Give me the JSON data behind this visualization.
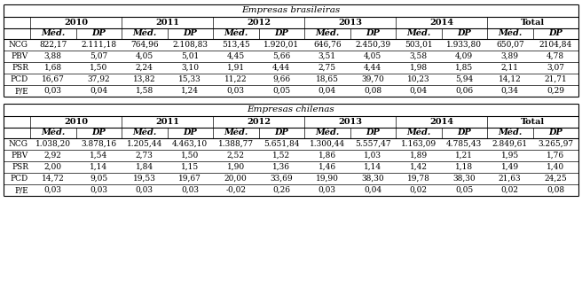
{
  "title_top": "Empresas brasileiras",
  "title_bottom": "Empresas chilenas",
  "years": [
    "2010",
    "2011",
    "2012",
    "2013",
    "2014",
    "Total"
  ],
  "row_labels": [
    "NCG",
    "PBV",
    "PSR",
    "PCD",
    "P/E"
  ],
  "col_headers": [
    "Méd.",
    "DP"
  ],
  "br_data": [
    [
      "822,17",
      "2.111,18",
      "764,96",
      "2.108,83",
      "513,45",
      "1.920,01",
      "646,76",
      "2.450,39",
      "503,01",
      "1.933,80",
      "650,07",
      "2104,84"
    ],
    [
      "3,88",
      "5,07",
      "4,05",
      "5,01",
      "4,45",
      "5,66",
      "3,51",
      "4,05",
      "3,58",
      "4,09",
      "3,89",
      "4,78"
    ],
    [
      "1,68",
      "1,50",
      "2,24",
      "3,10",
      "1,91",
      "4,44",
      "2,75",
      "4,44",
      "1,98",
      "1,85",
      "2,11",
      "3,07"
    ],
    [
      "16,67",
      "37,92",
      "13,82",
      "15,33",
      "11,22",
      "9,66",
      "18,65",
      "39,70",
      "10,23",
      "5,94",
      "14,12",
      "21,71"
    ],
    [
      "0,03",
      "0,04",
      "1,58",
      "1,24",
      "0,03",
      "0,05",
      "0,04",
      "0,08",
      "0,04",
      "0,06",
      "0,34",
      "0,29"
    ]
  ],
  "cl_data": [
    [
      "1.038,20",
      "3.878,16",
      "1.205,44",
      "4.463,10",
      "1.388,77",
      "5.651,84",
      "1.300,44",
      "5.557,47",
      "1.163,09",
      "4.785,43",
      "2.849,61",
      "3.265,97"
    ],
    [
      "2,92",
      "1,54",
      "2,73",
      "1,50",
      "2,52",
      "1,52",
      "1,86",
      "1,03",
      "1,89",
      "1,21",
      "1,95",
      "1,76"
    ],
    [
      "2,00",
      "1,14",
      "1,84",
      "1,15",
      "1,90",
      "1,36",
      "1,46",
      "1,14",
      "1,42",
      "1,18",
      "1,49",
      "1,40"
    ],
    [
      "14,72",
      "9,05",
      "19,53",
      "19,67",
      "20,00",
      "33,69",
      "19,90",
      "38,30",
      "19,78",
      "38,30",
      "21,63",
      "24,25"
    ],
    [
      "0,03",
      "0,03",
      "0,03",
      "0,03",
      "-0,02",
      "0,26",
      "0,03",
      "0,04",
      "0,02",
      "0,05",
      "0,02",
      "0,08"
    ]
  ],
  "background": "#ffffff",
  "line_color": "#000000",
  "font_size": 6.5,
  "header_font_size": 7.0,
  "title_font_size": 7.5
}
